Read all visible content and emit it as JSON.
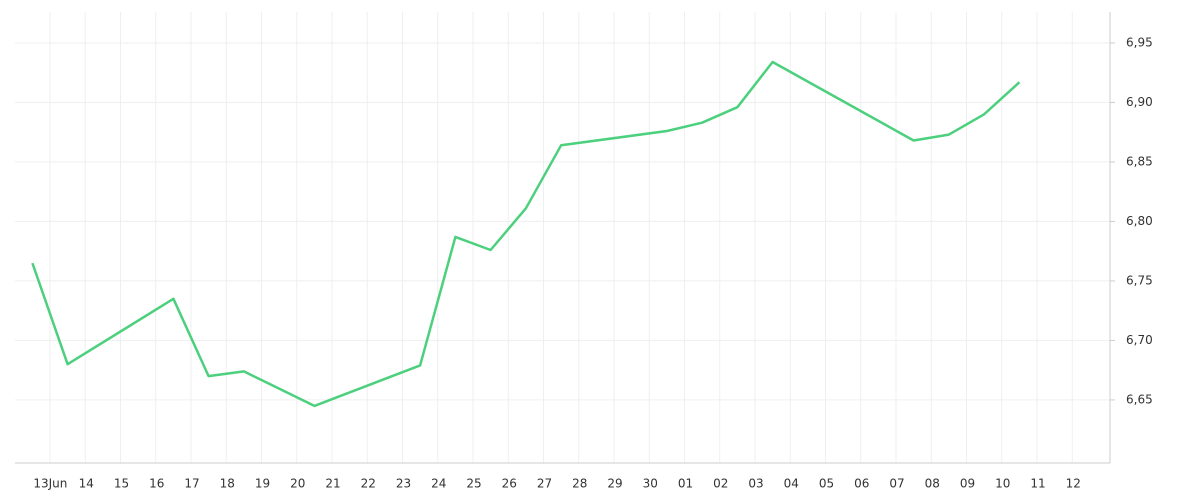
{
  "chart_data": {
    "type": "line",
    "month_label": "Jun",
    "categories": [
      "13",
      "14",
      "15",
      "16",
      "17",
      "18",
      "19",
      "20",
      "21",
      "22",
      "23",
      "24",
      "25",
      "26",
      "27",
      "28",
      "29",
      "30",
      "01",
      "02",
      "03",
      "04",
      "05",
      "06",
      "07",
      "08",
      "09",
      "10",
      "11",
      "12"
    ],
    "series": [
      {
        "color": "#4cd07d",
        "x": [
          "13",
          "14",
          "17",
          "18",
          "19",
          "21",
          "24",
          "25",
          "26",
          "27",
          "28",
          "01",
          "02",
          "03",
          "04",
          "08",
          "09",
          "10",
          "11"
        ],
        "values": [
          6.765,
          6.68,
          6.735,
          6.67,
          6.674,
          6.645,
          6.679,
          6.787,
          6.776,
          6.811,
          6.864,
          6.876,
          6.883,
          6.896,
          6.934,
          6.868,
          6.873,
          6.89,
          6.917
        ]
      }
    ],
    "ylim": [
      6.597,
      6.976
    ],
    "yticks": [
      {
        "value": 6.65,
        "label": "6,65"
      },
      {
        "value": 6.7,
        "label": "6,70"
      },
      {
        "value": 6.75,
        "label": "6,75"
      },
      {
        "value": 6.8,
        "label": "6,80"
      },
      {
        "value": 6.85,
        "label": "6,85"
      },
      {
        "value": 6.9,
        "label": "6,90"
      },
      {
        "value": 6.95,
        "label": "6,95"
      }
    ],
    "grid": true
  }
}
